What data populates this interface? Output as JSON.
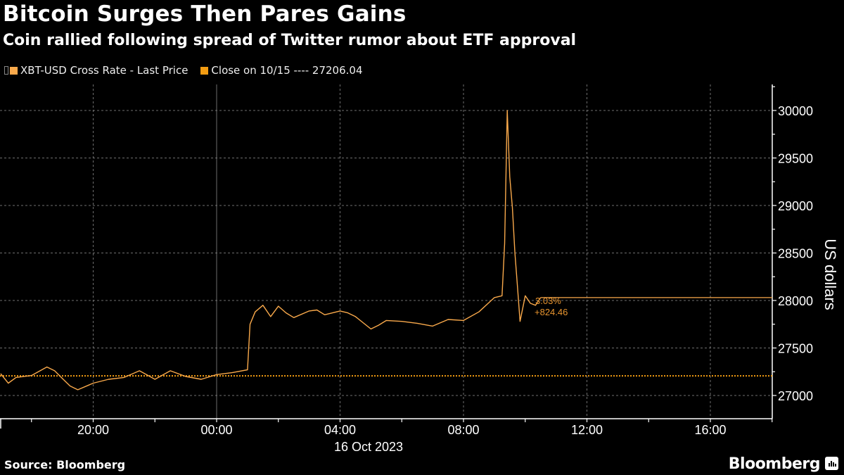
{
  "header": {
    "title": "Bitcoin Surges Then Pares Gains",
    "subtitle": "Coin rallied following spread of Twitter rumor about ETF approval"
  },
  "legend": {
    "items": [
      {
        "label": "XBT-USD Cross Rate - Last Price",
        "color": "#f9a94b"
      },
      {
        "label": "Close on 10/15 ---- 27206.04",
        "color": "#f39c12"
      }
    ]
  },
  "annotation": {
    "pct": "3.03%",
    "change": "+824.46",
    "color": "#e8952f"
  },
  "axis": {
    "y_title": "US dollars",
    "date_label": "16 Oct 2023"
  },
  "footer": {
    "source": "Source: Bloomberg",
    "brand": "Bloomberg"
  },
  "colors": {
    "background": "#000000",
    "line": "#f9a94b",
    "close_line": "#f39c12",
    "grid": "#8a8a8a",
    "axis": "#ffffff"
  },
  "chart_data": {
    "type": "line",
    "title": "Bitcoin Surges Then Pares Gains",
    "subtitle": "Coin rallied following spread of Twitter rumor about ETF approval",
    "xlabel": "16 Oct 2023",
    "ylabel": "US dollars",
    "ylim": [
      26850,
      30250
    ],
    "y_ticks": [
      27000,
      27500,
      28000,
      28500,
      29000,
      29500,
      30000
    ],
    "x_ticks": [
      "20:00",
      "00:00",
      "04:00",
      "08:00",
      "12:00",
      "16:00"
    ],
    "grid": true,
    "legend_position": "top-left",
    "reference_line": {
      "label": "Close on 10/15",
      "value": 27206.04
    },
    "last_change": {
      "pct": "3.03%",
      "abs": "+824.46",
      "last_value": 28030.5
    },
    "series": [
      {
        "name": "XBT-USD Cross Rate - Last Price",
        "x": [
          "17:00",
          "17:15",
          "17:30",
          "18:00",
          "18:30",
          "18:45",
          "19:00",
          "19:15",
          "19:30",
          "20:00",
          "20:30",
          "21:00",
          "21:30",
          "22:00",
          "22:30",
          "23:00",
          "23:30",
          "00:00",
          "00:30",
          "01:00",
          "01:05",
          "01:15",
          "01:30",
          "01:45",
          "02:00",
          "02:15",
          "02:30",
          "03:00",
          "03:15",
          "03:30",
          "04:00",
          "04:15",
          "04:30",
          "05:00",
          "05:15",
          "05:30",
          "06:00",
          "06:30",
          "07:00",
          "07:30",
          "08:00",
          "08:30",
          "09:00",
          "09:15",
          "09:20",
          "09:25",
          "09:30",
          "09:35",
          "09:40",
          "09:45",
          "09:50",
          "10:00",
          "10:10",
          "10:20",
          "10:30"
        ],
        "values": [
          27230,
          27130,
          27190,
          27210,
          27300,
          27260,
          27180,
          27100,
          27060,
          27130,
          27170,
          27190,
          27260,
          27170,
          27260,
          27200,
          27170,
          27220,
          27240,
          27270,
          27750,
          27880,
          27950,
          27830,
          27940,
          27870,
          27820,
          27890,
          27900,
          27850,
          27890,
          27870,
          27830,
          27700,
          27740,
          27790,
          27780,
          27760,
          27730,
          27800,
          27790,
          27880,
          28030,
          28050,
          28600,
          30000,
          29300,
          28980,
          28500,
          28140,
          27780,
          28050,
          27970,
          27950,
          28030
        ]
      }
    ]
  }
}
